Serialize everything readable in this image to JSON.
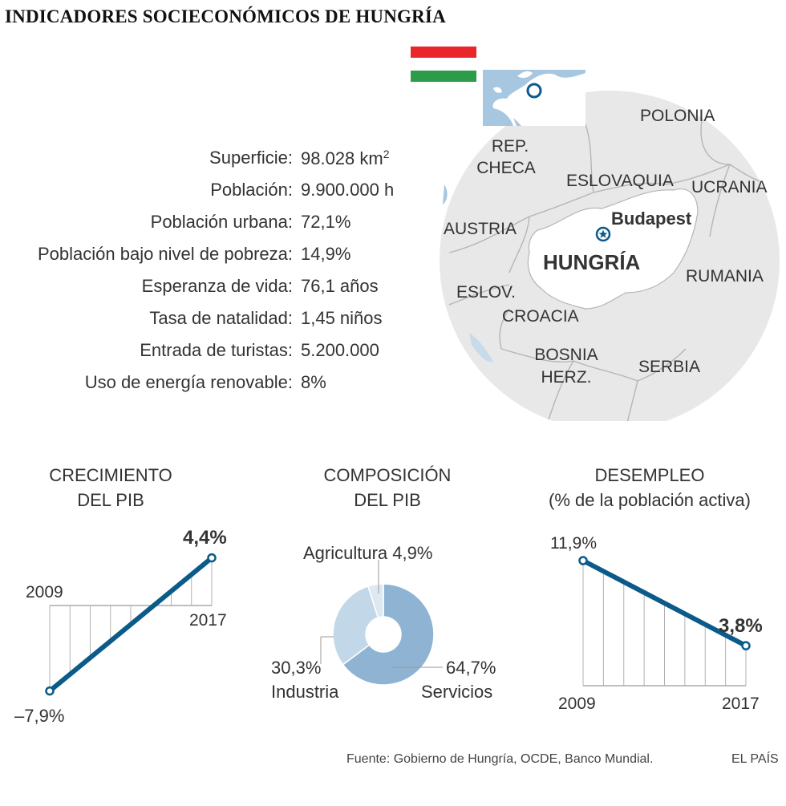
{
  "title": "INDICADORES SOCIECONÓMICOS DE HUNGRÍA",
  "colors": {
    "flag_red": "#e8262b",
    "flag_green": "#2c9b4a",
    "dark_blue": "#0a5a8a",
    "donut_dark": "#8fb4d3",
    "donut_mid": "#c2d8e8",
    "donut_light": "#dde9f2",
    "map_land": "#e8e8e8",
    "map_hungary": "#ffffff",
    "inset_water": "#a7c6e0"
  },
  "indicators": [
    {
      "label": "Superficie:",
      "value": "98.028 km",
      "sup": "2"
    },
    {
      "label": "Población:",
      "value": "9.900.000 h"
    },
    {
      "label": "Población urbana:",
      "value": "72,1%"
    },
    {
      "label": "Población bajo nivel de pobreza:",
      "value": "14,9%"
    },
    {
      "label": "Esperanza de vida:",
      "value": "76,1 años"
    },
    {
      "label": "Tasa de natalidad:",
      "value": "1,45 niños"
    },
    {
      "label": "Entrada de turistas:",
      "value": "5.200.000"
    },
    {
      "label": "Uso de energía renovable:",
      "value": "8%"
    }
  ],
  "map": {
    "countries": {
      "polonia": "POLONIA",
      "rep": "REP.",
      "checa": "CHECA",
      "eslovaquia": "ESLOVAQUIA",
      "ucrania": "UCRANIA",
      "austria": "AUSTRIA",
      "hungria": "HUNGRÍA",
      "rumania": "RUMANIA",
      "eslov": "ESLOV.",
      "croacia": "CROACIA",
      "bosnia": "BOSNIA",
      "herz": "HERZ.",
      "serbia": "SERBIA"
    },
    "capital": "Budapest"
  },
  "chart_data": [
    {
      "type": "line",
      "title_line1": "CRECIMIENTO",
      "title_line2": "DEL PIB",
      "x": [
        "2009",
        "2017"
      ],
      "values": [
        -7.9,
        4.4
      ],
      "value_labels": [
        "–7,9%",
        "4,4%"
      ],
      "x_labels": [
        "2009",
        "2017"
      ]
    },
    {
      "type": "pie",
      "title_line1": "COMPOSICIÓN",
      "title_line2": "DEL PIB",
      "slices": [
        {
          "name": "Servicios",
          "value": 64.7,
          "label_pct": "64,7%",
          "label_name": "Servicios"
        },
        {
          "name": "Industria",
          "value": 30.3,
          "label_pct": "30,3%",
          "label_name": "Industria"
        },
        {
          "name": "Agricultura",
          "value": 4.9,
          "label": "Agricultura 4,9%"
        }
      ]
    },
    {
      "type": "line",
      "title_line1": "DESEMPLEO",
      "title_line2": "(% de la población activa)",
      "x": [
        "2009",
        "2017"
      ],
      "values": [
        11.9,
        3.8
      ],
      "value_labels": [
        "11,9%",
        "3,8%"
      ],
      "x_labels": [
        "2009",
        "2017"
      ]
    }
  ],
  "footer": {
    "source": "Fuente: Gobierno de Hungría, OCDE, Banco Mundial.",
    "brand": "EL PAÍS"
  }
}
